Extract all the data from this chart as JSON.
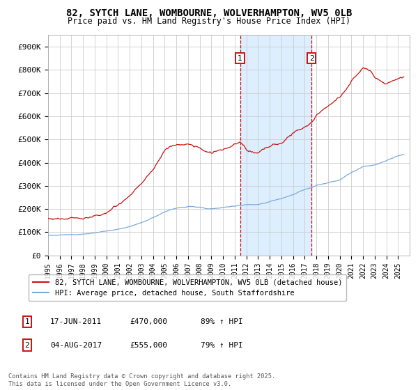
{
  "title_line1": "82, SYTCH LANE, WOMBOURNE, WOLVERHAMPTON, WV5 0LB",
  "title_line2": "Price paid vs. HM Land Registry's House Price Index (HPI)",
  "ylim": [
    0,
    950000
  ],
  "yticks": [
    0,
    100000,
    200000,
    300000,
    400000,
    500000,
    600000,
    700000,
    800000,
    900000
  ],
  "ytick_labels": [
    "£0",
    "£100K",
    "£200K",
    "£300K",
    "£400K",
    "£500K",
    "£600K",
    "£700K",
    "£800K",
    "£900K"
  ],
  "hpi_color": "#7aaadd",
  "price_color": "#cc1111",
  "bg_color": "#ffffff",
  "shade_color": "#ddeeff",
  "grid_color": "#cccccc",
  "annotation1": {
    "label": "1",
    "date_x": 2011.46,
    "price": 470000,
    "date_str": "17-JUN-2011",
    "price_str": "£470,000",
    "pct_str": "89% ↑ HPI"
  },
  "annotation2": {
    "label": "2",
    "date_x": 2017.59,
    "price": 555000,
    "date_str": "04-AUG-2017",
    "price_str": "£555,000",
    "pct_str": "79% ↑ HPI"
  },
  "legend_line1": "82, SYTCH LANE, WOMBOURNE, WOLVERHAMPTON, WV5 0LB (detached house)",
  "legend_line2": "HPI: Average price, detached house, South Staffordshire",
  "footnote": "Contains HM Land Registry data © Crown copyright and database right 2025.\nThis data is licensed under the Open Government Licence v3.0.",
  "xmin": 1995,
  "xmax": 2026
}
